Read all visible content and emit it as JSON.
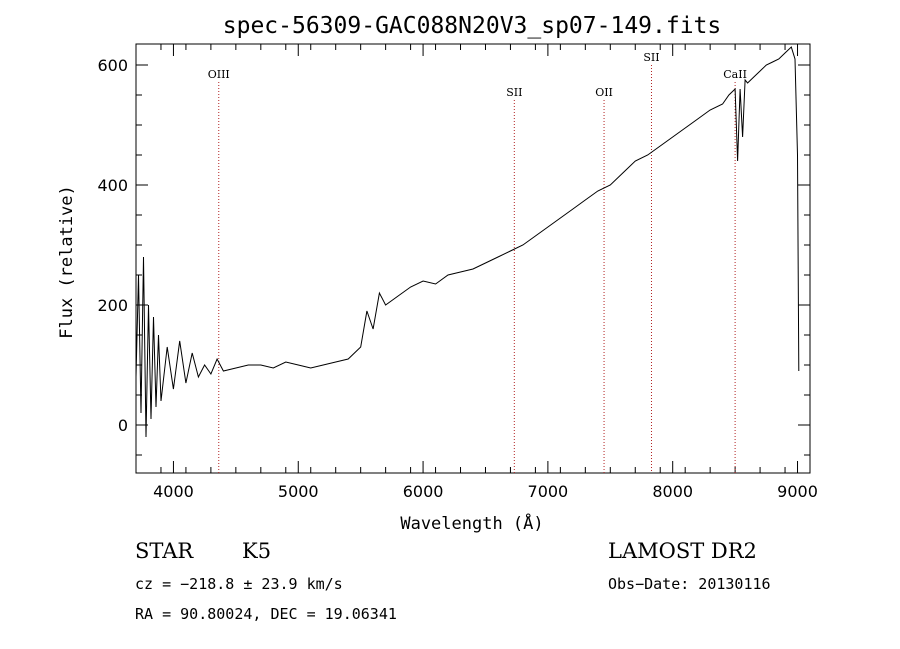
{
  "chart_data": {
    "type": "line",
    "title": "spec-56309-GAC088N20V3_sp07-149.fits",
    "xlabel": "Wavelength (Å)",
    "ylabel": "Flux (relative)",
    "xlim": [
      3700,
      9100
    ],
    "ylim": [
      -80,
      635
    ],
    "xticks": [
      4000,
      5000,
      6000,
      7000,
      8000,
      9000
    ],
    "yticks": [
      0,
      200,
      400,
      600
    ],
    "grid": false,
    "series": [
      {
        "x": [
          3700,
          3720,
          3740,
          3760,
          3780,
          3800,
          3820,
          3840,
          3860,
          3880,
          3900,
          3950,
          4000,
          4050,
          4100,
          4150,
          4200,
          4250,
          4300,
          4350,
          4400,
          4500,
          4600,
          4700,
          4800,
          4900,
          5000,
          5100,
          5200,
          5300,
          5400,
          5500,
          5550,
          5600,
          5650,
          5700,
          5800,
          5900,
          6000,
          6100,
          6200,
          6300,
          6400,
          6500,
          6600,
          6700,
          6800,
          6900,
          7000,
          7100,
          7200,
          7300,
          7400,
          7500,
          7600,
          7700,
          7800,
          7900,
          8000,
          8100,
          8200,
          8300,
          8400,
          8450,
          8500,
          8520,
          8540,
          8560,
          8580,
          8600,
          8650,
          8700,
          8750,
          8800,
          8850,
          8900,
          8950,
          8980,
          9000,
          9010
        ],
        "y": [
          80,
          250,
          20,
          280,
          -20,
          200,
          10,
          180,
          30,
          150,
          40,
          130,
          60,
          140,
          70,
          120,
          80,
          100,
          85,
          110,
          90,
          95,
          100,
          100,
          95,
          105,
          100,
          95,
          100,
          105,
          110,
          130,
          190,
          160,
          220,
          200,
          215,
          230,
          240,
          235,
          250,
          255,
          260,
          270,
          280,
          290,
          300,
          315,
          330,
          345,
          360,
          375,
          390,
          400,
          420,
          440,
          450,
          465,
          480,
          495,
          510,
          525,
          535,
          550,
          560,
          440,
          560,
          480,
          575,
          570,
          580,
          590,
          600,
          605,
          610,
          620,
          630,
          610,
          450,
          90
        ]
      }
    ],
    "annotations": [
      {
        "label": "OIII",
        "x": 4363,
        "level": "high"
      },
      {
        "label": "SII",
        "x": 6731,
        "level": "mid"
      },
      {
        "label": "OII",
        "x": 7450,
        "level": "mid"
      },
      {
        "label": "SII",
        "x": 7830,
        "level": "top"
      },
      {
        "label": "CaII",
        "x": 8500,
        "level": "high"
      }
    ],
    "info": {
      "type_label": "STAR",
      "subclass": "K5",
      "survey": "LAMOST DR2",
      "cz": "cz = −218.8 ± 23.9 km/s",
      "obs_date": "Obs−Date: 20130116",
      "coords": "RA =  90.80024, DEC =  19.06341"
    }
  }
}
